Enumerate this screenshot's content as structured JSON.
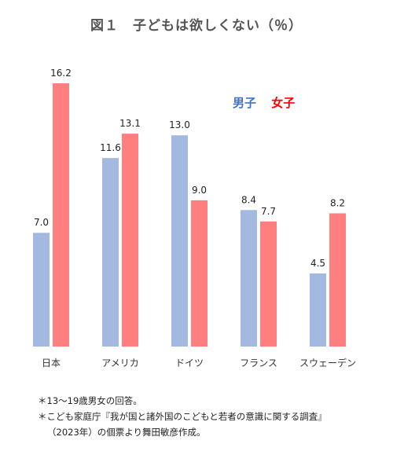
{
  "title": "図１　子どもは欲しくない（％）",
  "legend": {
    "male": "男子",
    "female": "女子"
  },
  "colors": {
    "male": "#A3B9E0",
    "female": "#FF7F7F",
    "male_text": "#4472C4",
    "female_text": "#FF0000"
  },
  "chart_data": {
    "type": "bar",
    "categories": [
      "日本",
      "アメリカ",
      "ドイツ",
      "フランス",
      "スウェーデン"
    ],
    "series": [
      {
        "name": "男子",
        "values": [
          7.0,
          11.6,
          13.0,
          8.4,
          4.5
        ]
      },
      {
        "name": "女子",
        "values": [
          16.2,
          13.1,
          9.0,
          7.7,
          8.2
        ]
      }
    ],
    "title": "図１　子どもは欲しくない（％）",
    "xlabel": "",
    "ylabel": "",
    "ylim": [
      0,
      16.2
    ],
    "grid": false,
    "legend_position": "top-right"
  },
  "notes": [
    "＊13～19歳男女の回答。",
    "＊こども家庭庁『我が国と諸外国のこどもと若者の意識に関する調査』",
    "（2023年）の個票より舞田敏彦作成。"
  ]
}
